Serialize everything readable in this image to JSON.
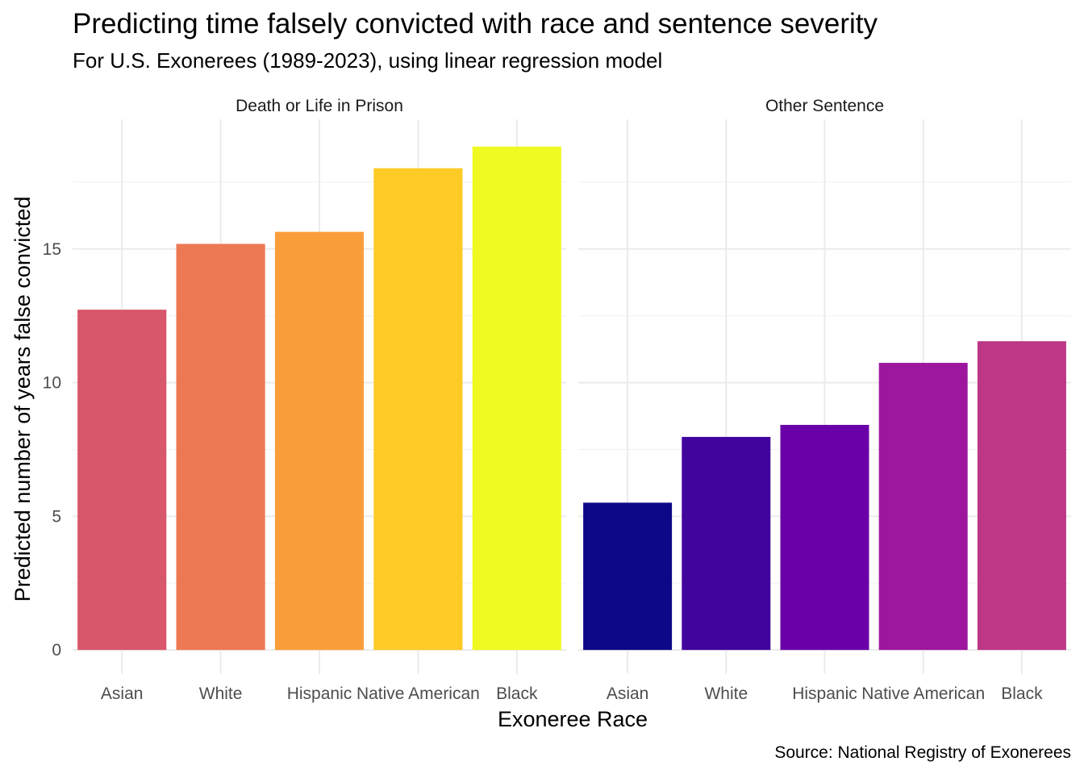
{
  "chart_data": {
    "type": "bar",
    "title": "Predicting time falsely convicted with race and sentence severity",
    "subtitle": "For U.S. Exonerees (1989-2023), using linear regression model",
    "xlabel": "Exoneree Race",
    "ylabel": "Predicted number of years false convicted",
    "caption": "Source: National Registry of Exonerees",
    "categories": [
      "Asian",
      "White",
      "Hispanic",
      "Native American",
      "Black"
    ],
    "ylim": [
      0,
      19
    ],
    "yticks": [
      0,
      5,
      10,
      15
    ],
    "grid": true,
    "legend": "none",
    "panels": [
      {
        "label": "Death or Life in Prison",
        "values": [
          12.73,
          15.19,
          15.64,
          18.02,
          18.83
        ],
        "colors": [
          "#D8576B",
          "#ED7953",
          "#FA9E3B",
          "#FDCA26",
          "#F0F921"
        ]
      },
      {
        "label": "Other Sentence",
        "values": [
          5.51,
          7.97,
          8.42,
          10.74,
          11.55
        ],
        "colors": [
          "#0D0887",
          "#41049D",
          "#6A00A8",
          "#9C179E",
          "#BD3786"
        ]
      }
    ]
  }
}
